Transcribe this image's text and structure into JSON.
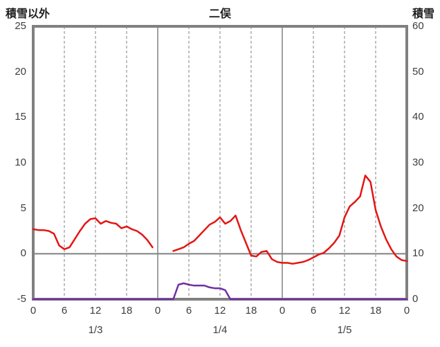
{
  "header": {
    "left_axis_title": "積雪以外",
    "chart_title": "二俣",
    "right_axis_title": "積雪"
  },
  "chart_data": {
    "type": "line",
    "title": "二俣",
    "x_hours_total": 72,
    "x_tick_interval": 6,
    "x_tick_labels": [
      "0",
      "6",
      "12",
      "18",
      "0",
      "6",
      "12",
      "18",
      "0",
      "6",
      "12",
      "18",
      "0"
    ],
    "day_labels": [
      "1/3",
      "1/4",
      "1/5"
    ],
    "left_axis": {
      "title": "積雪以外",
      "min": -5,
      "max": 25,
      "ticks": [
        25,
        20,
        15,
        10,
        5,
        0,
        -5
      ]
    },
    "right_axis": {
      "title": "積雪",
      "min": 0,
      "max": 60,
      "ticks": [
        60,
        50,
        40,
        30,
        20,
        10,
        0
      ]
    },
    "grid": {
      "dashed_vertical_every_hours": 6,
      "solid_vertical_every_hours": 24,
      "zero_line": true
    },
    "colors": {
      "grid": "#808080",
      "border": "#808080",
      "zero_line": "#808080"
    },
    "series": [
      {
        "name": "積雪以外",
        "axis": "left",
        "color": "#e41513",
        "values": [
          2.7,
          2.6,
          2.6,
          2.5,
          2.2,
          0.9,
          0.5,
          0.7,
          1.6,
          2.5,
          3.3,
          3.8,
          3.9,
          3.3,
          3.6,
          3.4,
          3.3,
          2.8,
          3.0,
          2.7,
          2.5,
          2.1,
          1.5,
          0.7,
          null,
          null,
          null,
          0.3,
          0.5,
          0.7,
          1.1,
          1.4,
          2.0,
          2.6,
          3.2,
          3.5,
          4.0,
          3.3,
          3.6,
          4.2,
          2.6,
          1.2,
          -0.2,
          -0.3,
          0.2,
          0.3,
          -0.6,
          -0.9,
          -1.0,
          -1.0,
          -1.1,
          -1.0,
          -0.9,
          -0.7,
          -0.4,
          -0.1,
          0.1,
          0.6,
          1.2,
          2.0,
          4.0,
          5.2,
          5.7,
          6.3,
          8.6,
          7.9,
          4.8,
          3.0,
          1.6,
          0.5,
          -0.3,
          -0.7,
          -0.8
        ]
      },
      {
        "name": "積雪",
        "axis": "right",
        "color": "#7030a0",
        "values": [
          0,
          0,
          0,
          0,
          0,
          0,
          0,
          0,
          0,
          0,
          0,
          0,
          0,
          0,
          0,
          0,
          0,
          0,
          0,
          0,
          0,
          0,
          0,
          0,
          0,
          0,
          0,
          0,
          3.2,
          3.5,
          3.2,
          3.0,
          3.0,
          3.0,
          2.6,
          2.4,
          2.4,
          2.0,
          0,
          0,
          0,
          0,
          0,
          0,
          0,
          0,
          0,
          0,
          0,
          0,
          0,
          0,
          0,
          0,
          0,
          0,
          0,
          0,
          0,
          0,
          0,
          0,
          0,
          0,
          0,
          0,
          0,
          0,
          0,
          0,
          0,
          0,
          0
        ]
      }
    ]
  }
}
